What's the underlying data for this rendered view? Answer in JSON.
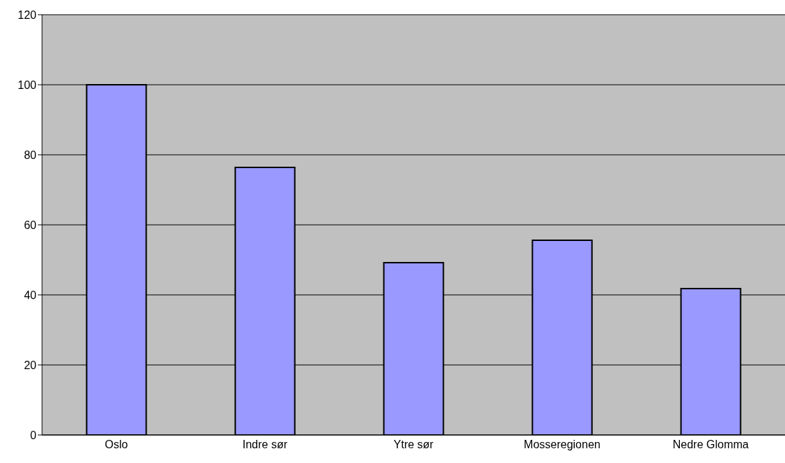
{
  "chart_data": {
    "type": "bar",
    "categories": [
      "Oslo",
      "Indre sør",
      "Ytre sør",
      "Mosseregionen",
      "Nedre Glomma"
    ],
    "values": [
      100,
      76.4,
      49.2,
      55.6,
      41.8
    ],
    "color": "#9999ff",
    "ylim": [
      0,
      120
    ],
    "yticks": [
      0,
      20,
      40,
      60,
      80,
      100,
      120
    ],
    "grid": "y",
    "legend": false
  }
}
